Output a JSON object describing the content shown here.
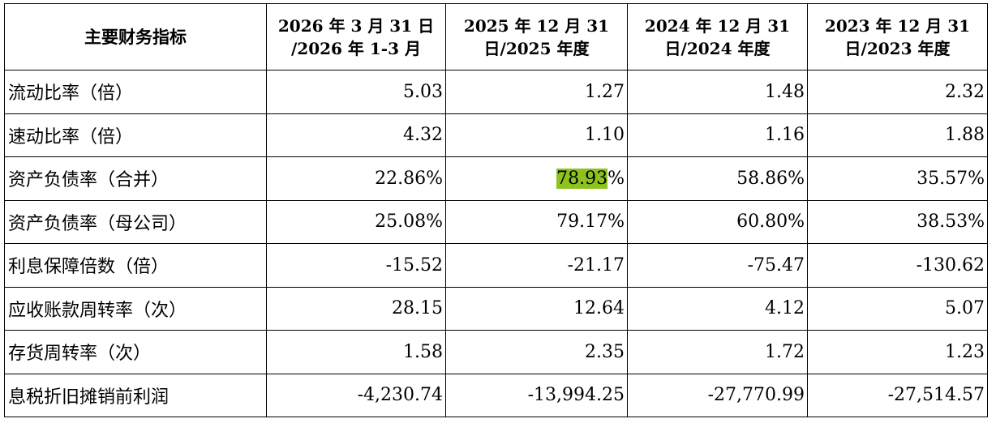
{
  "header": {
    "label": "主要财务指标",
    "columns": [
      {
        "line1": "2026 年 3 月 31 日",
        "line2": "/2026 年 1-3 月"
      },
      {
        "line1": "2025 年 12 月 31",
        "line2": "日/2025 年度"
      },
      {
        "line1": "2024 年 12 月 31",
        "line2": "日/2024 年度"
      },
      {
        "line1": "2023 年 12 月 31",
        "line2": "日/2023 年度"
      }
    ]
  },
  "rows": [
    {
      "label": "流动比率（倍）",
      "values": [
        "5.03",
        "1.27",
        "1.48",
        "2.32"
      ]
    },
    {
      "label": "速动比率（倍）",
      "values": [
        "4.32",
        "1.10",
        "1.16",
        "1.88"
      ]
    },
    {
      "label": "资产负债率（合并）",
      "values": [
        "22.86%",
        "78.93",
        "58.86%",
        "35.57%"
      ],
      "suffix_1": "%"
    },
    {
      "label": "资产负债率（母公司）",
      "values": [
        "25.08%",
        "79.17%",
        "60.80%",
        "38.53%"
      ]
    },
    {
      "label": "利息保障倍数（倍）",
      "values": [
        "-15.52",
        "-21.17",
        "-75.47",
        "-130.62"
      ]
    },
    {
      "label": "应收账款周转率（次）",
      "values": [
        "28.15",
        "12.64",
        "4.12",
        "5.07"
      ]
    },
    {
      "label": "存货周转率（次）",
      "values": [
        "1.58",
        "2.35",
        "1.72",
        "1.23"
      ]
    },
    {
      "label": "息税折旧摊销前利润",
      "values": [
        "-4,230.74",
        "-13,994.25",
        "-27,770.99",
        "-27,514.57"
      ]
    }
  ],
  "highlight_color": "#8dc21f"
}
